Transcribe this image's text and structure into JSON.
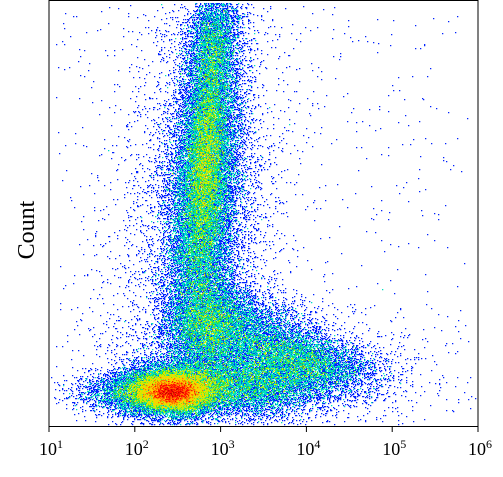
{
  "chart_data": {
    "type": "scatter",
    "plot_style": "density",
    "title": "",
    "xlabel": "",
    "ylabel": "Count",
    "x_scale": "log",
    "xlim": [
      10,
      1000000
    ],
    "x_ticks": [
      {
        "base": "10",
        "exp": "1"
      },
      {
        "base": "10",
        "exp": "2"
      },
      {
        "base": "10",
        "exp": "3"
      },
      {
        "base": "10",
        "exp": "4"
      },
      {
        "base": "10",
        "exp": "5"
      },
      {
        "base": "10",
        "exp": "6"
      }
    ],
    "grid": false,
    "legend": "none",
    "colormap": [
      "#0000cc",
      "#0022ff",
      "#00a0ff",
      "#00e0c0",
      "#30e030",
      "#c8f000",
      "#ffd000",
      "#ff7000",
      "#ff1000",
      "#c80000"
    ],
    "populations": [
      {
        "x_center": 250,
        "density": "highest",
        "peak_color": "red"
      },
      {
        "x_center": 550,
        "density": "high",
        "peak_color": "yellow"
      },
      {
        "x_center": 600,
        "density": "medium",
        "peak_color": "green"
      },
      {
        "x_center": 3000,
        "density": "low",
        "peak_color": "cyan"
      }
    ]
  }
}
